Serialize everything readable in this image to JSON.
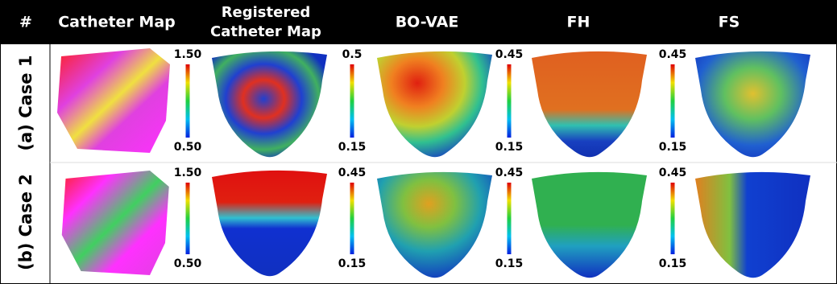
{
  "header": {
    "columns": [
      "#",
      "Catheter Map",
      "Registered Catheter Map",
      "BO-VAE",
      "FH",
      "FS"
    ]
  },
  "rows": [
    {
      "label": "(a) Case 1",
      "colorbars": [
        {
          "max": "1.50",
          "min": "0.50"
        },
        {
          "max": "0.5",
          "min": "0.15"
        },
        {
          "max": "0.45",
          "min": "0.15"
        },
        {
          "max": "0.45",
          "min": "0.15"
        }
      ]
    },
    {
      "label": "(b) Case 2",
      "colorbars": [
        {
          "max": "1.50",
          "min": "0.50"
        },
        {
          "max": "0.45",
          "min": "0.15"
        },
        {
          "max": "0.45",
          "min": "0.15"
        },
        {
          "max": "0.45",
          "min": "0.15"
        }
      ]
    }
  ]
}
